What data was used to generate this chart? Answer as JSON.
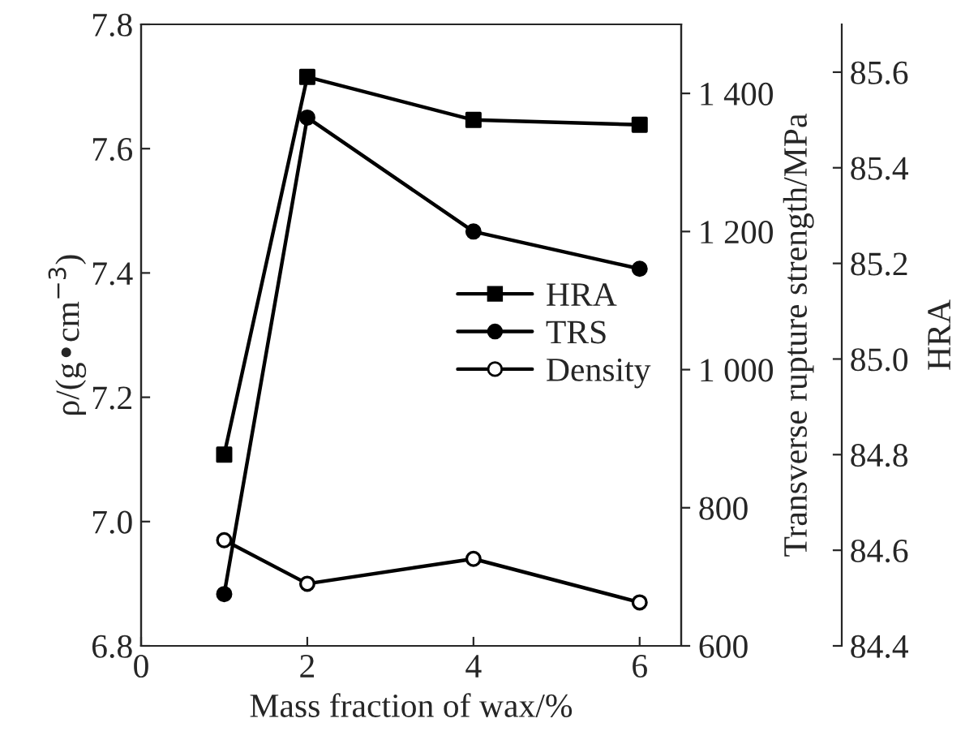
{
  "chart_data": {
    "type": "line",
    "xlabel": "Mass fraction of wax/%",
    "ylabel": "ρ/(g•cm$^{−3}$)",
    "y2label": "Transverse rupture strength/MPa",
    "y3label": "HRA",
    "x": [
      1,
      2,
      4,
      6
    ],
    "series": [
      {
        "name": "HRA",
        "color": "#000000",
        "marker": "square",
        "axis": "y3",
        "values": [
          84.8,
          85.59,
          85.5,
          85.49
        ]
      },
      {
        "name": "TRS",
        "color": "#000000",
        "marker": "circle",
        "axis": "y2",
        "values": [
          675,
          1365,
          1200,
          1146
        ]
      },
      {
        "name": "Density",
        "color": "#000000",
        "marker": "circle",
        "colors": [
          "#ffffff",
          "#ffffff",
          "#ffffff",
          "#ffffff"
        ],
        "values": [
          6.97,
          6.9,
          6.94,
          6.87
        ]
      }
    ],
    "xlim": [
      0,
      6.5
    ],
    "xticks": [
      0,
      2,
      4,
      6
    ],
    "ylim": [
      6.8,
      7.8
    ],
    "yticks": [
      6.8,
      {
        "value": 7.0,
        "label": "7.0"
      },
      7.2,
      7.4,
      7.6,
      7.8
    ],
    "y2lim": [
      600,
      1500
    ],
    "y2ticks": [
      600,
      800,
      {
        "value": 1000,
        "label": "1 000"
      },
      {
        "value": 1200,
        "label": "1 200"
      },
      {
        "value": 1400,
        "label": "1 400"
      }
    ],
    "y3lim": [
      84.4,
      85.7
    ],
    "y3ticks": [
      84.4,
      84.6,
      84.8,
      {
        "value": 85.0,
        "label": "85.0"
      },
      85.2,
      85.4,
      85.6
    ],
    "grid": false,
    "legend": "center right",
    "line_style": "solid"
  }
}
